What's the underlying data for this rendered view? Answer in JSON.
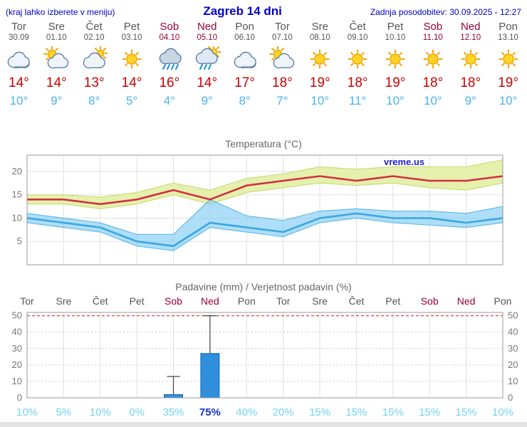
{
  "header": {
    "left_note": "(kraj lahko izberete v meniju)",
    "title": "Zagreb 14 dni",
    "updated": "Zadnja posodobitev: 30.09.2025 - 12:27"
  },
  "watermark": "vreme.us",
  "colors": {
    "header_blue": "#0000cc",
    "weekday_gray": "#555555",
    "weekend_red": "#990033",
    "high_red": "#cc0000",
    "low_blue": "#4ab2f2",
    "max_line": "#d03040",
    "min_line": "#3aa6e0",
    "max_band": "#e6f0ad",
    "max_band_edge": "#c4d96a",
    "min_band": "#82cdf5",
    "bar_blue": "#2f8fdd",
    "bar_edge": "#1565a8",
    "prob_cyan": "#70d4f0",
    "prob_strong": "#1536cc",
    "grid_gray": "#e0e0e0",
    "axis_text": "#777777",
    "rain_line_red": "#dd4444"
  },
  "days": [
    {
      "weekday": "Tor",
      "date": "30.09",
      "weekend": false,
      "icon": "cloudy",
      "high": "14°",
      "low": "10°",
      "prob": "10%",
      "prob_strong": false
    },
    {
      "weekday": "Sre",
      "date": "01.10",
      "weekend": false,
      "icon": "partly-cloudy",
      "high": "14°",
      "low": "9°",
      "prob": "5%",
      "prob_strong": false
    },
    {
      "weekday": "Čet",
      "date": "02.10",
      "weekend": false,
      "icon": "mostly-cloudy",
      "high": "13°",
      "low": "8°",
      "prob": "10%",
      "prob_strong": false
    },
    {
      "weekday": "Pet",
      "date": "03.10",
      "weekend": false,
      "icon": "sunny",
      "high": "14°",
      "low": "5°",
      "prob": "0%",
      "prob_strong": false
    },
    {
      "weekday": "Sob",
      "date": "04.10",
      "weekend": true,
      "icon": "rain",
      "high": "16°",
      "low": "4°",
      "prob": "35%",
      "prob_strong": false
    },
    {
      "weekday": "Ned",
      "date": "05.10",
      "weekend": true,
      "icon": "showers",
      "high": "14°",
      "low": "9°",
      "prob": "75%",
      "prob_strong": true
    },
    {
      "weekday": "Pon",
      "date": "06.10",
      "weekend": false,
      "icon": "cloudy",
      "high": "17°",
      "low": "8°",
      "prob": "40%",
      "prob_strong": false
    },
    {
      "weekday": "Tor",
      "date": "07.10",
      "weekend": false,
      "icon": "partly-cloudy",
      "high": "18°",
      "low": "7°",
      "prob": "20%",
      "prob_strong": false
    },
    {
      "weekday": "Sre",
      "date": "08.10",
      "weekend": false,
      "icon": "sunny",
      "high": "19°",
      "low": "10°",
      "prob": "15%",
      "prob_strong": false
    },
    {
      "weekday": "Čet",
      "date": "09.10",
      "weekend": false,
      "icon": "sunny",
      "high": "18°",
      "low": "11°",
      "prob": "15%",
      "prob_strong": false
    },
    {
      "weekday": "Pet",
      "date": "10.10",
      "weekend": false,
      "icon": "sunny",
      "high": "19°",
      "low": "10°",
      "prob": "15%",
      "prob_strong": false
    },
    {
      "weekday": "Sob",
      "date": "11.10",
      "weekend": true,
      "icon": "sunny",
      "high": "18°",
      "low": "10°",
      "prob": "15%",
      "prob_strong": false
    },
    {
      "weekday": "Ned",
      "date": "12.10",
      "weekend": true,
      "icon": "sunny",
      "high": "18°",
      "low": "9°",
      "prob": "15%",
      "prob_strong": false
    },
    {
      "weekday": "Pon",
      "date": "13.10",
      "weekend": false,
      "icon": "sunny",
      "high": "19°",
      "low": "10°",
      "prob": "10%",
      "prob_strong": false
    }
  ],
  "chart_data": [
    {
      "type": "line",
      "title": "Temperatura (°C)",
      "categories": [
        "Tor",
        "Sre",
        "Čet",
        "Pet",
        "Sob",
        "Ned",
        "Pon",
        "Tor",
        "Sre",
        "Čet",
        "Pet",
        "Sob",
        "Ned",
        "Pon"
      ],
      "ylabel": "°C",
      "ylim": [
        0,
        23.5
      ],
      "yticks": [
        5,
        10,
        15,
        20
      ],
      "grid": true,
      "legend": "none",
      "series": [
        {
          "name": "max_upper",
          "values": [
            15,
            15,
            14.5,
            15.5,
            17.5,
            16,
            18.5,
            19.5,
            21,
            20.5,
            21,
            21,
            21,
            22.5
          ]
        },
        {
          "name": "max",
          "values": [
            14,
            14,
            13,
            14,
            16,
            14,
            17,
            18,
            19,
            18,
            19,
            18,
            18,
            19
          ]
        },
        {
          "name": "max_lower",
          "values": [
            13,
            13,
            12,
            13,
            15,
            13,
            15.5,
            16.5,
            17.5,
            17,
            17.5,
            16.5,
            16,
            17.5
          ]
        },
        {
          "name": "min_upper",
          "values": [
            11,
            10,
            9,
            6.5,
            6.5,
            14,
            10.5,
            9.5,
            11.5,
            12,
            11.5,
            11.5,
            11,
            12.5
          ]
        },
        {
          "name": "min",
          "values": [
            10,
            9,
            8,
            5,
            4,
            9,
            8,
            7,
            10,
            11,
            10,
            10,
            9,
            10
          ]
        },
        {
          "name": "min_lower",
          "values": [
            9,
            8,
            7,
            4,
            3,
            8,
            7,
            6,
            9,
            10,
            9,
            8.5,
            8,
            9
          ]
        }
      ]
    },
    {
      "type": "bar",
      "title": "Padavine (mm) / Verjetnost padavin (%)",
      "categories": [
        "Tor",
        "Sre",
        "Čet",
        "Pet",
        "Sob",
        "Ned",
        "Pon",
        "Tor",
        "Sre",
        "Čet",
        "Pet",
        "Sob",
        "Ned",
        "Pon"
      ],
      "weekend_flags": [
        false,
        false,
        false,
        false,
        true,
        true,
        false,
        false,
        false,
        false,
        false,
        true,
        true,
        false
      ],
      "ylim": [
        0,
        52
      ],
      "yticks": [
        0,
        10,
        20,
        30,
        40,
        50
      ],
      "max_line_value": 50,
      "values": [
        0,
        0,
        0,
        0,
        2,
        27,
        0,
        0,
        0,
        0,
        0,
        0,
        0,
        0
      ],
      "whiskers": [
        0,
        0,
        0,
        0,
        13,
        50,
        0,
        0,
        0,
        0,
        0,
        0,
        0,
        0
      ],
      "probabilities": [
        "10%",
        "5%",
        "10%",
        "0%",
        "35%",
        "75%",
        "40%",
        "20%",
        "15%",
        "15%",
        "15%",
        "15%",
        "15%",
        "10%"
      ]
    }
  ]
}
